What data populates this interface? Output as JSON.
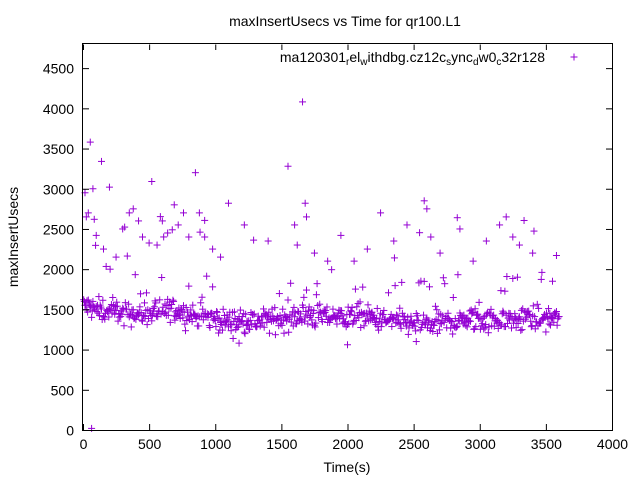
{
  "chart_data": {
    "type": "scatter",
    "title": "maxInsertUsecs vs Time for qr100.L1",
    "xlabel": "Time(s)",
    "ylabel": "maxInsertUsecs",
    "xlim": [
      0,
      4000
    ],
    "ylim": [
      0,
      4800
    ],
    "xticks": [
      0,
      500,
      1000,
      1500,
      2000,
      2500,
      3000,
      3500,
      4000
    ],
    "yticks": [
      0,
      500,
      1000,
      1500,
      2000,
      2500,
      3000,
      3500,
      4000,
      4500
    ],
    "xtick_labels": [
      "0",
      "500",
      "1000",
      "1500",
      "2000",
      "2500",
      "3000",
      "3500",
      "4000"
    ],
    "ytick_labels": [
      "0",
      "500",
      "1000",
      "1500",
      "2000",
      "2500",
      "3000",
      "3500",
      "4000",
      "4500"
    ],
    "marker": "+",
    "color": "#9400d3",
    "legend": {
      "position": "top-right",
      "entry_parts": [
        {
          "t": "ma120301",
          "sub": false
        },
        {
          "t": "r",
          "sub": true
        },
        {
          "t": "el",
          "sub": false
        },
        {
          "t": "w",
          "sub": true
        },
        {
          "t": "ithdbg.cz12c",
          "sub": false
        },
        {
          "t": "s",
          "sub": true
        },
        {
          "t": "ync",
          "sub": false
        },
        {
          "t": "d",
          "sub": true
        },
        {
          "t": "w0",
          "sub": false
        },
        {
          "t": "c",
          "sub": true
        },
        {
          "t": "32r128",
          "sub": false
        }
      ]
    },
    "series": [
      {
        "name": "ma120301_rel_withdbg.cz12c_sync_dw0_c32r128",
        "x_start": 5,
        "x_step": 5,
        "x_end": 3600,
        "body_trend": [
          [
            0,
            1550
          ],
          [
            100,
            1500
          ],
          [
            300,
            1450
          ],
          [
            500,
            1450
          ],
          [
            700,
            1500
          ],
          [
            900,
            1400
          ],
          [
            1100,
            1350
          ],
          [
            1300,
            1350
          ],
          [
            1500,
            1380
          ],
          [
            1700,
            1420
          ],
          [
            1900,
            1400
          ],
          [
            2100,
            1420
          ],
          [
            2300,
            1350
          ],
          [
            2500,
            1330
          ],
          [
            2700,
            1330
          ],
          [
            2900,
            1360
          ],
          [
            3100,
            1380
          ],
          [
            3300,
            1400
          ],
          [
            3500,
            1380
          ],
          [
            3600,
            1400
          ]
        ],
        "body_spread": 130,
        "outliers": [
          {
            "x": 15,
            "y": 2950
          },
          {
            "x": 25,
            "y": 2650
          },
          {
            "x": 40,
            "y": 2700
          },
          {
            "x": 55,
            "y": 3580
          },
          {
            "x": 65,
            "y": 20
          },
          {
            "x": 75,
            "y": 3000
          },
          {
            "x": 85,
            "y": 2620
          },
          {
            "x": 100,
            "y": 2420
          },
          {
            "x": 140,
            "y": 3340
          },
          {
            "x": 155,
            "y": 2250
          },
          {
            "x": 200,
            "y": 3020
          },
          {
            "x": 250,
            "y": 2150
          },
          {
            "x": 300,
            "y": 2500
          },
          {
            "x": 350,
            "y": 2700
          },
          {
            "x": 380,
            "y": 2750
          },
          {
            "x": 420,
            "y": 2600
          },
          {
            "x": 450,
            "y": 2400
          },
          {
            "x": 520,
            "y": 3090
          },
          {
            "x": 560,
            "y": 2300
          },
          {
            "x": 600,
            "y": 2600
          },
          {
            "x": 640,
            "y": 2450
          },
          {
            "x": 690,
            "y": 2800
          },
          {
            "x": 720,
            "y": 2550
          },
          {
            "x": 760,
            "y": 2700
          },
          {
            "x": 800,
            "y": 2400
          },
          {
            "x": 850,
            "y": 3200
          },
          {
            "x": 880,
            "y": 2700
          },
          {
            "x": 920,
            "y": 2400
          },
          {
            "x": 980,
            "y": 2250
          },
          {
            "x": 1040,
            "y": 2150
          },
          {
            "x": 1100,
            "y": 2820
          },
          {
            "x": 1220,
            "y": 2550
          },
          {
            "x": 1400,
            "y": 2350
          },
          {
            "x": 1550,
            "y": 3280
          },
          {
            "x": 1600,
            "y": 2550
          },
          {
            "x": 1620,
            "y": 2300
          },
          {
            "x": 1660,
            "y": 4080
          },
          {
            "x": 1680,
            "y": 2820
          },
          {
            "x": 1690,
            "y": 2650
          },
          {
            "x": 1750,
            "y": 2200
          },
          {
            "x": 1850,
            "y": 2100
          },
          {
            "x": 1950,
            "y": 2420
          },
          {
            "x": 2050,
            "y": 2100
          },
          {
            "x": 2150,
            "y": 2250
          },
          {
            "x": 2250,
            "y": 2700
          },
          {
            "x": 2350,
            "y": 2350
          },
          {
            "x": 2450,
            "y": 2550
          },
          {
            "x": 2580,
            "y": 2850
          },
          {
            "x": 2600,
            "y": 2750
          },
          {
            "x": 2630,
            "y": 2400
          },
          {
            "x": 2700,
            "y": 2200
          },
          {
            "x": 2830,
            "y": 2640
          },
          {
            "x": 2850,
            "y": 2500
          },
          {
            "x": 2950,
            "y": 2100
          },
          {
            "x": 3050,
            "y": 2350
          },
          {
            "x": 3150,
            "y": 2550
          },
          {
            "x": 3200,
            "y": 2650
          },
          {
            "x": 3250,
            "y": 2400
          },
          {
            "x": 3300,
            "y": 2300
          },
          {
            "x": 3400,
            "y": 2200
          },
          {
            "x": 3470,
            "y": 1960
          },
          {
            "x": 3550,
            "y": 1850
          },
          {
            "x": 3580,
            "y": 2170
          },
          {
            "x": 2000,
            "y": 1060
          },
          {
            "x": 1180,
            "y": 1080
          },
          {
            "x": 2520,
            "y": 1100
          }
        ]
      }
    ]
  }
}
